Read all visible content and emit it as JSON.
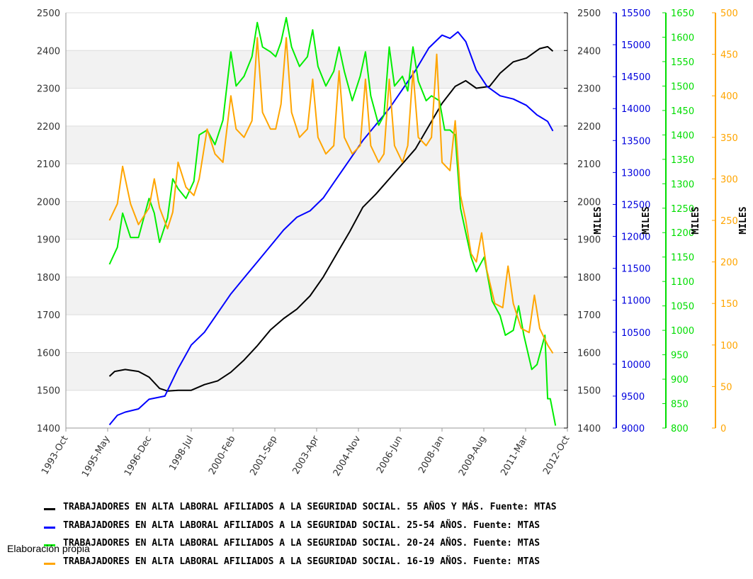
{
  "chart_data": {
    "type": "line",
    "x_ticks": [
      "1993-Oct",
      "1995-May",
      "1996-Dec",
      "1998-Jul",
      "2000-Feb",
      "2001-Sep",
      "2003-Apr",
      "2004-Nov",
      "2006-Jun",
      "2008-Jan",
      "2009-Aug",
      "2011-Mar",
      "2012-Oct"
    ],
    "axes": {
      "left": {
        "min": 1400,
        "max": 2500,
        "step": 100
      },
      "right1": {
        "min": 1400,
        "max": 2500,
        "step": 100,
        "unit": "MILES"
      },
      "right2": {
        "min": 9000,
        "max": 15500,
        "step": 500,
        "unit": "MILES",
        "color": "#0000dd"
      },
      "right3": {
        "min": 800,
        "max": 1650,
        "step": 50,
        "unit": "MILES",
        "color": "#00dd00"
      },
      "right4": {
        "min": 0,
        "max": 500,
        "step": 50,
        "unit": "MILES",
        "color": "#ffa500"
      }
    },
    "grid": "horizontal bands",
    "series": [
      {
        "name": "TRABAJADORES EN ALTA LABORAL AFILIADOS A LA SEGURIDAD SOCIAL. 55 AÑOS Y MÁS.  Fuente: MTAS",
        "color": "#000000",
        "axis": "left",
        "points": [
          [
            1995.4,
            1537
          ],
          [
            1995.6,
            1550
          ],
          [
            1996.0,
            1555
          ],
          [
            1996.5,
            1550
          ],
          [
            1996.9,
            1535
          ],
          [
            1997.3,
            1505
          ],
          [
            1997.6,
            1498
          ],
          [
            1998.0,
            1500
          ],
          [
            1998.5,
            1500
          ],
          [
            1999.0,
            1515
          ],
          [
            1999.5,
            1525
          ],
          [
            2000.0,
            1548
          ],
          [
            2000.5,
            1580
          ],
          [
            2001.0,
            1618
          ],
          [
            2001.5,
            1660
          ],
          [
            2002.0,
            1690
          ],
          [
            2002.5,
            1715
          ],
          [
            2003.0,
            1750
          ],
          [
            2003.5,
            1800
          ],
          [
            2004.0,
            1860
          ],
          [
            2004.5,
            1920
          ],
          [
            2005.0,
            1985
          ],
          [
            2005.5,
            2020
          ],
          [
            2006.0,
            2060
          ],
          [
            2006.5,
            2100
          ],
          [
            2007.0,
            2140
          ],
          [
            2007.5,
            2200
          ],
          [
            2008.0,
            2260
          ],
          [
            2008.5,
            2305
          ],
          [
            2008.9,
            2320
          ],
          [
            2009.3,
            2300
          ],
          [
            2009.8,
            2305
          ],
          [
            2010.2,
            2340
          ],
          [
            2010.7,
            2370
          ],
          [
            2011.2,
            2380
          ],
          [
            2011.7,
            2405
          ],
          [
            2012.0,
            2410
          ],
          [
            2012.2,
            2398
          ]
        ]
      },
      {
        "name": "TRABAJADORES EN ALTA LABORAL AFILIADOS A LA SEGURIDAD SOCIAL. 25-54 AÑOS.  Fuente: MTAS",
        "color": "#0000ff",
        "axis": "right2",
        "points": [
          [
            1995.4,
            9050
          ],
          [
            1995.7,
            9200
          ],
          [
            1996.0,
            9250
          ],
          [
            1996.5,
            9300
          ],
          [
            1996.9,
            9450
          ],
          [
            1997.5,
            9500
          ],
          [
            1998.0,
            9930
          ],
          [
            1998.5,
            10300
          ],
          [
            1999.0,
            10500
          ],
          [
            1999.5,
            10800
          ],
          [
            2000.0,
            11100
          ],
          [
            2000.5,
            11350
          ],
          [
            2001.0,
            11600
          ],
          [
            2001.5,
            11850
          ],
          [
            2002.0,
            12100
          ],
          [
            2002.5,
            12300
          ],
          [
            2003.0,
            12400
          ],
          [
            2003.5,
            12600
          ],
          [
            2004.0,
            12900
          ],
          [
            2004.5,
            13200
          ],
          [
            2005.0,
            13500
          ],
          [
            2005.5,
            13750
          ],
          [
            2006.0,
            14000
          ],
          [
            2006.5,
            14300
          ],
          [
            2007.0,
            14600
          ],
          [
            2007.5,
            14950
          ],
          [
            2008.0,
            15150
          ],
          [
            2008.3,
            15100
          ],
          [
            2008.6,
            15200
          ],
          [
            2008.9,
            15050
          ],
          [
            2009.3,
            14600
          ],
          [
            2009.7,
            14350
          ],
          [
            2010.2,
            14200
          ],
          [
            2010.7,
            14150
          ],
          [
            2011.2,
            14050
          ],
          [
            2011.6,
            13900
          ],
          [
            2012.0,
            13800
          ],
          [
            2012.2,
            13650
          ]
        ]
      },
      {
        "name": "TRABAJADORES EN ALTA LABORAL AFILIADOS A LA SEGURIDAD SOCIAL. 20-24 AÑOS.  Fuente: MTAS",
        "color": "#00ee00",
        "axis": "right3",
        "points": [
          [
            1995.4,
            1135
          ],
          [
            1995.7,
            1170
          ],
          [
            1995.9,
            1240
          ],
          [
            1996.2,
            1190
          ],
          [
            1996.5,
            1190
          ],
          [
            1996.9,
            1270
          ],
          [
            1997.1,
            1240
          ],
          [
            1997.3,
            1180
          ],
          [
            1997.6,
            1230
          ],
          [
            1997.8,
            1310
          ],
          [
            1998.0,
            1290
          ],
          [
            1998.3,
            1270
          ],
          [
            1998.6,
            1305
          ],
          [
            1998.8,
            1400
          ],
          [
            1999.1,
            1410
          ],
          [
            1999.4,
            1380
          ],
          [
            1999.7,
            1430
          ],
          [
            2000.0,
            1570
          ],
          [
            2000.2,
            1500
          ],
          [
            2000.5,
            1520
          ],
          [
            2000.8,
            1560
          ],
          [
            2001.0,
            1630
          ],
          [
            2001.2,
            1580
          ],
          [
            2001.5,
            1570
          ],
          [
            2001.7,
            1560
          ],
          [
            2001.9,
            1590
          ],
          [
            2002.1,
            1640
          ],
          [
            2002.3,
            1580
          ],
          [
            2002.6,
            1540
          ],
          [
            2002.9,
            1560
          ],
          [
            2003.1,
            1615
          ],
          [
            2003.3,
            1540
          ],
          [
            2003.6,
            1500
          ],
          [
            2003.9,
            1530
          ],
          [
            2004.1,
            1580
          ],
          [
            2004.3,
            1530
          ],
          [
            2004.6,
            1470
          ],
          [
            2004.9,
            1520
          ],
          [
            2005.1,
            1570
          ],
          [
            2005.3,
            1480
          ],
          [
            2005.6,
            1420
          ],
          [
            2005.8,
            1440
          ],
          [
            2006.0,
            1580
          ],
          [
            2006.2,
            1500
          ],
          [
            2006.5,
            1520
          ],
          [
            2006.7,
            1490
          ],
          [
            2006.9,
            1580
          ],
          [
            2007.1,
            1510
          ],
          [
            2007.4,
            1470
          ],
          [
            2007.6,
            1480
          ],
          [
            2007.9,
            1470
          ],
          [
            2008.1,
            1410
          ],
          [
            2008.3,
            1410
          ],
          [
            2008.5,
            1400
          ],
          [
            2008.7,
            1250
          ],
          [
            2008.9,
            1200
          ],
          [
            2009.1,
            1150
          ],
          [
            2009.3,
            1120
          ],
          [
            2009.6,
            1150
          ],
          [
            2009.9,
            1060
          ],
          [
            2010.2,
            1030
          ],
          [
            2010.4,
            990
          ],
          [
            2010.7,
            1000
          ],
          [
            2010.9,
            1050
          ],
          [
            2011.1,
            990
          ],
          [
            2011.4,
            920
          ],
          [
            2011.6,
            930
          ],
          [
            2011.9,
            990
          ],
          [
            2012.0,
            860
          ],
          [
            2012.1,
            860
          ],
          [
            2012.3,
            805
          ]
        ]
      },
      {
        "name": "TRABAJADORES EN ALTA LABORAL AFILIADOS A LA SEGURIDAD SOCIAL. 16-19 AÑOS.  Fuente: MTAS",
        "color": "#ffa500",
        "axis": "right4",
        "points": [
          [
            1995.4,
            250
          ],
          [
            1995.7,
            270
          ],
          [
            1995.9,
            315
          ],
          [
            1996.2,
            270
          ],
          [
            1996.5,
            245
          ],
          [
            1996.9,
            265
          ],
          [
            1997.1,
            300
          ],
          [
            1997.3,
            265
          ],
          [
            1997.6,
            240
          ],
          [
            1997.8,
            260
          ],
          [
            1998.0,
            320
          ],
          [
            1998.3,
            290
          ],
          [
            1998.6,
            280
          ],
          [
            1998.8,
            300
          ],
          [
            1999.1,
            360
          ],
          [
            1999.4,
            330
          ],
          [
            1999.7,
            320
          ],
          [
            2000.0,
            400
          ],
          [
            2000.2,
            360
          ],
          [
            2000.5,
            350
          ],
          [
            2000.8,
            370
          ],
          [
            2001.0,
            470
          ],
          [
            2001.2,
            380
          ],
          [
            2001.5,
            360
          ],
          [
            2001.7,
            360
          ],
          [
            2001.9,
            390
          ],
          [
            2002.1,
            470
          ],
          [
            2002.3,
            380
          ],
          [
            2002.6,
            350
          ],
          [
            2002.9,
            360
          ],
          [
            2003.1,
            420
          ],
          [
            2003.3,
            350
          ],
          [
            2003.6,
            330
          ],
          [
            2003.9,
            340
          ],
          [
            2004.1,
            430
          ],
          [
            2004.3,
            350
          ],
          [
            2004.6,
            330
          ],
          [
            2004.9,
            340
          ],
          [
            2005.1,
            420
          ],
          [
            2005.3,
            340
          ],
          [
            2005.6,
            320
          ],
          [
            2005.8,
            330
          ],
          [
            2006.0,
            420
          ],
          [
            2006.2,
            340
          ],
          [
            2006.5,
            320
          ],
          [
            2006.7,
            340
          ],
          [
            2006.9,
            430
          ],
          [
            2007.1,
            350
          ],
          [
            2007.4,
            340
          ],
          [
            2007.6,
            350
          ],
          [
            2007.8,
            450
          ],
          [
            2008.0,
            320
          ],
          [
            2008.3,
            310
          ],
          [
            2008.5,
            370
          ],
          [
            2008.7,
            280
          ],
          [
            2008.9,
            250
          ],
          [
            2009.1,
            210
          ],
          [
            2009.3,
            200
          ],
          [
            2009.5,
            235
          ],
          [
            2009.7,
            190
          ],
          [
            2010.0,
            150
          ],
          [
            2010.3,
            145
          ],
          [
            2010.5,
            195
          ],
          [
            2010.7,
            150
          ],
          [
            2011.0,
            120
          ],
          [
            2011.3,
            115
          ],
          [
            2011.5,
            160
          ],
          [
            2011.7,
            120
          ],
          [
            2012.0,
            100
          ],
          [
            2012.2,
            90
          ]
        ]
      }
    ]
  },
  "note": "Elaboración propia"
}
